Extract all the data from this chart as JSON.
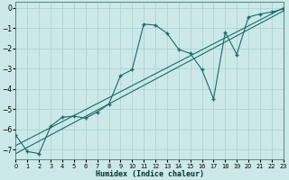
{
  "xlabel": "Humidex (Indice chaleur)",
  "xlim": [
    0,
    23
  ],
  "ylim": [
    -7.5,
    0.3
  ],
  "xticks": [
    0,
    1,
    2,
    3,
    4,
    5,
    6,
    7,
    8,
    9,
    10,
    11,
    12,
    13,
    14,
    15,
    16,
    17,
    18,
    19,
    20,
    21,
    22,
    23
  ],
  "yticks": [
    0,
    -1,
    -2,
    -3,
    -4,
    -5,
    -6,
    -7
  ],
  "bg_color": "#cce8e8",
  "grid_color": "#b0d4d4",
  "line_color": "#1a6b6b",
  "curve_x": [
    0,
    1,
    2,
    3,
    4,
    5,
    6,
    7,
    8,
    9,
    10,
    11,
    12,
    13,
    14,
    15,
    16,
    17,
    18,
    19,
    20,
    21,
    22,
    23
  ],
  "curve_y": [
    -6.3,
    -7.1,
    -7.2,
    -5.85,
    -5.4,
    -5.35,
    -5.45,
    -5.15,
    -4.75,
    -3.35,
    -3.05,
    -0.8,
    -0.85,
    -1.25,
    -2.05,
    -2.25,
    -3.05,
    -4.5,
    -1.2,
    -2.3,
    -0.45,
    -0.3,
    -0.2,
    -0.05
  ],
  "trend1_x": [
    0,
    23
  ],
  "trend1_y": [
    -6.8,
    0.0
  ],
  "trend2_x": [
    0,
    23
  ],
  "trend2_y": [
    -7.2,
    -0.15
  ]
}
